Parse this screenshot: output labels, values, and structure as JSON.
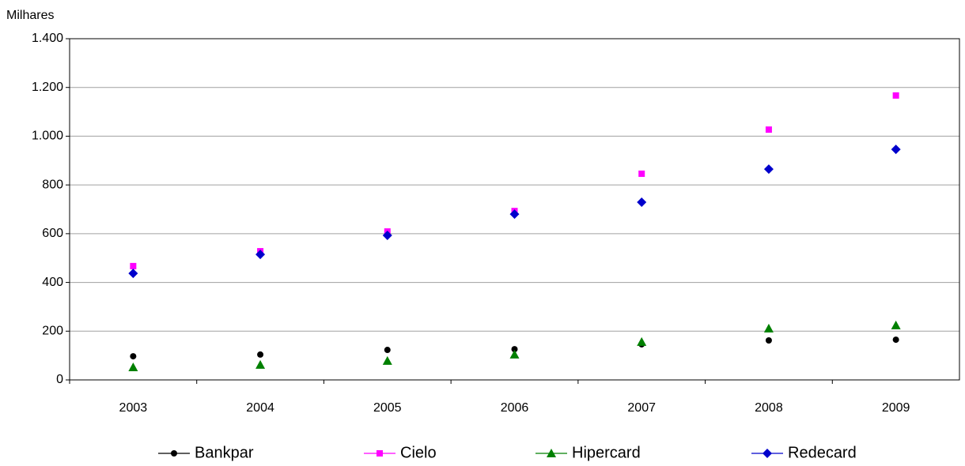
{
  "chart_data": {
    "type": "line",
    "y_label": "Milhares",
    "categories": [
      "2003",
      "2004",
      "2005",
      "2006",
      "2007",
      "2008",
      "2009"
    ],
    "series": [
      {
        "name": "Bankpar",
        "color": "#000000",
        "marker": "circle",
        "values": [
          97,
          104,
          123,
          126,
          146,
          162,
          165
        ]
      },
      {
        "name": "Cielo",
        "color": "#ff00ff",
        "marker": "square",
        "values": [
          467,
          528,
          609,
          693,
          846,
          1027,
          1167
        ]
      },
      {
        "name": "Hipercard",
        "color": "#008000",
        "marker": "triangle",
        "values": [
          52,
          62,
          78,
          104,
          156,
          211,
          224
        ]
      },
      {
        "name": "Redecard",
        "color": "#0000cc",
        "marker": "diamond",
        "values": [
          437,
          515,
          593,
          680,
          729,
          865,
          946
        ]
      }
    ],
    "ylim": [
      0,
      1400
    ],
    "yticks": [
      0,
      200,
      400,
      600,
      800,
      {
        "value": 1000,
        "label": "1.000"
      },
      {
        "value": 1200,
        "label": "1.200"
      },
      {
        "value": 1400,
        "label": "1.400"
      }
    ],
    "grid": true,
    "legend": "bottom"
  }
}
